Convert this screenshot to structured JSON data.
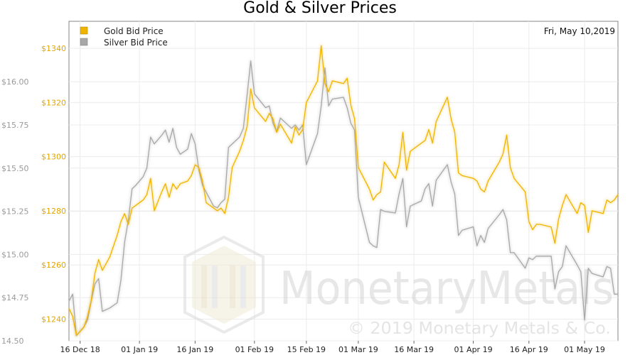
{
  "colors": {
    "gold": "#f0b400",
    "silver": "#a8a8a8",
    "silver_axis_text": "#9a9a9a",
    "gold_axis_text": "#e3a600",
    "grid": "#ececec"
  },
  "watermark": {
    "brand": "MonetaryMetals",
    "copyright": "© 2019 Monetary Metals & Co."
  },
  "chart_data": {
    "type": "line",
    "title": "Gold & Silver Prices",
    "date_label": "Fri, May 10,2019",
    "legend_position": "top-left",
    "grid": true,
    "legend": [
      {
        "name": "Gold Bid Price",
        "color": "#f0b400"
      },
      {
        "name": "Silver Bid Price",
        "color": "#a8a8a8"
      }
    ],
    "x_ticks": [
      "16 Dec 18",
      "01 Jan 19",
      "16 Jan 19",
      "01 Feb 19",
      "15 Feb 19",
      "01 Mar 19",
      "16 Mar 19",
      "01 Apr 19",
      "16 Apr 19",
      "01 May 19"
    ],
    "y_gold": {
      "min": 1232,
      "max": 1350,
      "ticks": [
        "$1240",
        "$1260",
        "$1280",
        "$1300",
        "$1320",
        "$1340"
      ],
      "tick_values": [
        1240,
        1260,
        1280,
        1300,
        1320,
        1340
      ]
    },
    "y_silver": {
      "min": 14.5,
      "max": 16.35,
      "ticks": [
        "14.50",
        "$14.75",
        "$15.00",
        "$15.25",
        "$15.50",
        "$15.75",
        "$16.00"
      ],
      "tick_values": [
        14.5,
        14.75,
        15.0,
        15.25,
        15.5,
        15.75,
        16.0
      ]
    },
    "x_start": "2018-12-13",
    "x_end": "2019-05-10",
    "series": [
      {
        "name": "Gold Bid Price",
        "points": [
          [
            "2018-12-13",
            1244
          ],
          [
            "2018-12-14",
            1241
          ],
          [
            "2018-12-15",
            1234
          ],
          [
            "2018-12-17",
            1237
          ],
          [
            "2018-12-18",
            1241
          ],
          [
            "2018-12-19",
            1247
          ],
          [
            "2018-12-20",
            1257
          ],
          [
            "2018-12-21",
            1262
          ],
          [
            "2018-12-22",
            1258
          ],
          [
            "2018-12-24",
            1263
          ],
          [
            "2018-12-25",
            1267
          ],
          [
            "2018-12-26",
            1271
          ],
          [
            "2018-12-27",
            1276
          ],
          [
            "2018-12-28",
            1279
          ],
          [
            "2018-12-29",
            1275
          ],
          [
            "2018-12-30",
            1281
          ],
          [
            "2018-12-31",
            1282
          ],
          [
            "2019-01-02",
            1284
          ],
          [
            "2019-01-03",
            1286
          ],
          [
            "2019-01-04",
            1292
          ],
          [
            "2019-01-05",
            1280
          ],
          [
            "2019-01-07",
            1287
          ],
          [
            "2019-01-08",
            1290
          ],
          [
            "2019-01-09",
            1285
          ],
          [
            "2019-01-10",
            1290
          ],
          [
            "2019-01-11",
            1288
          ],
          [
            "2019-01-12",
            1290
          ],
          [
            "2019-01-14",
            1291
          ],
          [
            "2019-01-15",
            1293
          ],
          [
            "2019-01-16",
            1297
          ],
          [
            "2019-01-17",
            1296
          ],
          [
            "2019-01-18",
            1291
          ],
          [
            "2019-01-19",
            1283
          ],
          [
            "2019-01-22",
            1280
          ],
          [
            "2019-01-23",
            1281
          ],
          [
            "2019-01-24",
            1279
          ],
          [
            "2019-01-25",
            1285
          ],
          [
            "2019-01-26",
            1296
          ],
          [
            "2019-01-28",
            1302
          ],
          [
            "2019-01-29",
            1306
          ],
          [
            "2019-01-30",
            1311
          ],
          [
            "2019-01-31",
            1325
          ],
          [
            "2019-02-01",
            1318
          ],
          [
            "2019-02-04",
            1313
          ],
          [
            "2019-02-05",
            1316
          ],
          [
            "2019-02-06",
            1314
          ],
          [
            "2019-02-07",
            1309
          ],
          [
            "2019-02-08",
            1312
          ],
          [
            "2019-02-11",
            1305
          ],
          [
            "2019-02-12",
            1311
          ],
          [
            "2019-02-13",
            1308
          ],
          [
            "2019-02-14",
            1310
          ],
          [
            "2019-02-15",
            1320
          ],
          [
            "2019-02-18",
            1328
          ],
          [
            "2019-02-19",
            1341
          ],
          [
            "2019-02-20",
            1327
          ],
          [
            "2019-02-21",
            1324
          ],
          [
            "2019-02-22",
            1328
          ],
          [
            "2019-02-25",
            1327
          ],
          [
            "2019-02-26",
            1329
          ],
          [
            "2019-02-27",
            1319
          ],
          [
            "2019-02-28",
            1314
          ],
          [
            "2019-03-01",
            1296
          ],
          [
            "2019-03-04",
            1288
          ],
          [
            "2019-03-05",
            1284
          ],
          [
            "2019-03-06",
            1286
          ],
          [
            "2019-03-07",
            1287
          ],
          [
            "2019-03-08",
            1298
          ],
          [
            "2019-03-11",
            1292
          ],
          [
            "2019-03-12",
            1297
          ],
          [
            "2019-03-13",
            1309
          ],
          [
            "2019-03-14",
            1295
          ],
          [
            "2019-03-15",
            1302
          ],
          [
            "2019-03-18",
            1305
          ],
          [
            "2019-03-19",
            1306
          ],
          [
            "2019-03-20",
            1310
          ],
          [
            "2019-03-21",
            1305
          ],
          [
            "2019-03-22",
            1313
          ],
          [
            "2019-03-25",
            1322
          ],
          [
            "2019-03-26",
            1314
          ],
          [
            "2019-03-27",
            1309
          ],
          [
            "2019-03-28",
            1294
          ],
          [
            "2019-03-29",
            1293
          ],
          [
            "2019-04-01",
            1292
          ],
          [
            "2019-04-02",
            1291
          ],
          [
            "2019-04-03",
            1288
          ],
          [
            "2019-04-04",
            1287
          ],
          [
            "2019-04-05",
            1291
          ],
          [
            "2019-04-08",
            1298
          ],
          [
            "2019-04-09",
            1301
          ],
          [
            "2019-04-10",
            1308
          ],
          [
            "2019-04-11",
            1296
          ],
          [
            "2019-04-12",
            1292
          ],
          [
            "2019-04-15",
            1287
          ],
          [
            "2019-04-16",
            1276
          ],
          [
            "2019-04-17",
            1273
          ],
          [
            "2019-04-18",
            1275
          ],
          [
            "2019-04-19",
            1275
          ],
          [
            "2019-04-22",
            1274
          ],
          [
            "2019-04-23",
            1268
          ],
          [
            "2019-04-24",
            1277
          ],
          [
            "2019-04-25",
            1282
          ],
          [
            "2019-04-26",
            1286
          ],
          [
            "2019-04-29",
            1279
          ],
          [
            "2019-04-30",
            1283
          ],
          [
            "2019-05-01",
            1282
          ],
          [
            "2019-05-02",
            1272
          ],
          [
            "2019-05-03",
            1280
          ],
          [
            "2019-05-06",
            1279
          ],
          [
            "2019-05-07",
            1284
          ],
          [
            "2019-05-08",
            1283
          ],
          [
            "2019-05-09",
            1284
          ],
          [
            "2019-05-10",
            1286
          ]
        ]
      },
      {
        "name": "Silver Bid Price",
        "points": [
          [
            "2018-12-13",
            14.73
          ],
          [
            "2018-12-14",
            14.77
          ],
          [
            "2018-12-15",
            14.53
          ],
          [
            "2018-12-17",
            14.58
          ],
          [
            "2018-12-18",
            14.62
          ],
          [
            "2018-12-19",
            14.73
          ],
          [
            "2018-12-20",
            14.83
          ],
          [
            "2018-12-21",
            14.86
          ],
          [
            "2018-12-22",
            14.67
          ],
          [
            "2018-12-24",
            14.69
          ],
          [
            "2018-12-26",
            14.72
          ],
          [
            "2018-12-27",
            14.85
          ],
          [
            "2018-12-28",
            15.07
          ],
          [
            "2018-12-29",
            15.2
          ],
          [
            "2018-12-30",
            15.38
          ],
          [
            "2018-12-31",
            15.4
          ],
          [
            "2019-01-02",
            15.45
          ],
          [
            "2019-01-03",
            15.5
          ],
          [
            "2019-01-04",
            15.68
          ],
          [
            "2019-01-05",
            15.64
          ],
          [
            "2019-01-07",
            15.69
          ],
          [
            "2019-01-08",
            15.72
          ],
          [
            "2019-01-09",
            15.65
          ],
          [
            "2019-01-10",
            15.73
          ],
          [
            "2019-01-11",
            15.62
          ],
          [
            "2019-01-12",
            15.58
          ],
          [
            "2019-01-14",
            15.61
          ],
          [
            "2019-01-15",
            15.7
          ],
          [
            "2019-01-16",
            15.64
          ],
          [
            "2019-01-17",
            15.49
          ],
          [
            "2019-01-18",
            15.4
          ],
          [
            "2019-01-21",
            15.28
          ],
          [
            "2019-01-22",
            15.27
          ],
          [
            "2019-01-23",
            15.3
          ],
          [
            "2019-01-24",
            15.32
          ],
          [
            "2019-01-25",
            15.62
          ],
          [
            "2019-01-28",
            15.68
          ],
          [
            "2019-01-29",
            15.73
          ],
          [
            "2019-01-30",
            15.92
          ],
          [
            "2019-01-31",
            16.12
          ],
          [
            "2019-02-01",
            15.93
          ],
          [
            "2019-02-04",
            15.85
          ],
          [
            "2019-02-05",
            15.86
          ],
          [
            "2019-02-06",
            15.76
          ],
          [
            "2019-02-07",
            15.71
          ],
          [
            "2019-02-08",
            15.79
          ],
          [
            "2019-02-11",
            15.73
          ],
          [
            "2019-02-12",
            15.75
          ],
          [
            "2019-02-13",
            15.72
          ],
          [
            "2019-02-14",
            15.75
          ],
          [
            "2019-02-15",
            15.52
          ],
          [
            "2019-02-18",
            15.7
          ],
          [
            "2019-02-19",
            15.86
          ],
          [
            "2019-02-20",
            16.08
          ],
          [
            "2019-02-21",
            15.86
          ],
          [
            "2019-02-22",
            15.9
          ],
          [
            "2019-02-25",
            15.91
          ],
          [
            "2019-02-26",
            15.85
          ],
          [
            "2019-02-27",
            15.76
          ],
          [
            "2019-02-28",
            15.72
          ],
          [
            "2019-03-01",
            15.33
          ],
          [
            "2019-03-04",
            15.07
          ],
          [
            "2019-03-05",
            15.05
          ],
          [
            "2019-03-06",
            15.04
          ],
          [
            "2019-03-07",
            15.26
          ],
          [
            "2019-03-08",
            15.25
          ],
          [
            "2019-03-11",
            15.24
          ],
          [
            "2019-03-12",
            15.35
          ],
          [
            "2019-03-13",
            15.44
          ],
          [
            "2019-03-14",
            15.16
          ],
          [
            "2019-03-15",
            15.28
          ],
          [
            "2019-03-18",
            15.31
          ],
          [
            "2019-03-19",
            15.38
          ],
          [
            "2019-03-20",
            15.41
          ],
          [
            "2019-03-21",
            15.28
          ],
          [
            "2019-03-22",
            15.43
          ],
          [
            "2019-03-25",
            15.52
          ],
          [
            "2019-03-26",
            15.42
          ],
          [
            "2019-03-27",
            15.35
          ],
          [
            "2019-03-28",
            15.11
          ],
          [
            "2019-03-29",
            15.14
          ],
          [
            "2019-04-01",
            15.16
          ],
          [
            "2019-04-02",
            15.05
          ],
          [
            "2019-04-03",
            15.11
          ],
          [
            "2019-04-04",
            15.07
          ],
          [
            "2019-04-05",
            15.15
          ],
          [
            "2019-04-08",
            15.23
          ],
          [
            "2019-04-09",
            15.26
          ],
          [
            "2019-04-10",
            15.2
          ],
          [
            "2019-04-11",
            15.01
          ],
          [
            "2019-04-12",
            15.01
          ],
          [
            "2019-04-15",
            14.92
          ],
          [
            "2019-04-16",
            14.98
          ],
          [
            "2019-04-17",
            14.97
          ],
          [
            "2019-04-18",
            14.99
          ],
          [
            "2019-04-19",
            14.99
          ],
          [
            "2019-04-22",
            14.99
          ],
          [
            "2019-04-23",
            14.8
          ],
          [
            "2019-04-24",
            14.9
          ],
          [
            "2019-04-25",
            14.93
          ],
          [
            "2019-04-26",
            15.05
          ],
          [
            "2019-04-29",
            14.94
          ],
          [
            "2019-04-30",
            14.9
          ],
          [
            "2019-05-01",
            14.62
          ],
          [
            "2019-05-02",
            14.92
          ],
          [
            "2019-05-03",
            14.89
          ],
          [
            "2019-05-06",
            14.87
          ],
          [
            "2019-05-07",
            14.93
          ],
          [
            "2019-05-08",
            14.92
          ],
          [
            "2019-05-09",
            14.77
          ],
          [
            "2019-05-10",
            14.77
          ]
        ]
      }
    ]
  }
}
